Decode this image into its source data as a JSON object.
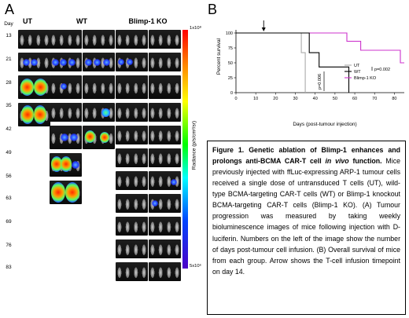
{
  "panel_a": {
    "letter": "A",
    "col_headers": [
      "UT",
      "WT",
      "Blimp-1 KO"
    ],
    "days": [
      "Day",
      "13",
      "21",
      "28",
      "35",
      "42",
      "49",
      "56",
      "63",
      "69",
      "76",
      "83"
    ],
    "colorbar": {
      "top_label": "1x10⁸",
      "bottom_label": "5x10⁶",
      "title": "Radiance (p/s/cm²/sr)",
      "colors": [
        "#ff0000",
        "#ffff00",
        "#00ff00",
        "#00ffff",
        "#0044ff",
        "#4b00c8"
      ]
    }
  },
  "panel_b": {
    "letter": "B",
    "chart_data": {
      "type": "line",
      "step": true,
      "xlabel": "Days (post-tumour injection)",
      "ylabel": "Percent survival",
      "xlim": [
        0,
        85
      ],
      "ylim": [
        0,
        100
      ],
      "xticks": [
        0,
        10,
        20,
        30,
        40,
        50,
        60,
        70,
        80
      ],
      "yticks": [
        0,
        25,
        50,
        75,
        100
      ],
      "arrow_day": 14,
      "series": [
        {
          "name": "UT",
          "color": "#aaaaaa",
          "points": [
            [
              0,
              100
            ],
            [
              33,
              100
            ],
            [
              33,
              67
            ],
            [
              35,
              67
            ],
            [
              35,
              0
            ]
          ]
        },
        {
          "name": "WT",
          "color": "#000000",
          "points": [
            [
              0,
              100
            ],
            [
              37,
              100
            ],
            [
              37,
              67
            ],
            [
              42,
              67
            ],
            [
              42,
              43
            ],
            [
              57,
              43
            ],
            [
              57,
              0
            ]
          ]
        },
        {
          "name": "Blimp-1 KO",
          "color": "#cc33cc",
          "points": [
            [
              0,
              100
            ],
            [
              56,
              100
            ],
            [
              56,
              86
            ],
            [
              63,
              86
            ],
            [
              63,
              71
            ],
            [
              83,
              71
            ],
            [
              83,
              50
            ],
            [
              85,
              50
            ]
          ]
        }
      ],
      "legend_position": "inside-right",
      "annotations": {
        "p1": "p=0.002",
        "p2": "p=0.006"
      }
    }
  },
  "caption": {
    "title": "Figure 1. Genetic ablation of Blimp-1 enhances and prolongs anti-BCMA CAR-T cell ",
    "title_italic": "in vivo",
    "title_end": " function.",
    "body": "Mice previously injected with ffLuc-expressing ARP-1 tumour cells received a single dose of untransduced T cells (UT), wild-type BCMA-targeting CAR-T cells (WT) or Blimp-1 knockout BCMA-targeting CAR-T cells (Blimp-1 KO). (A) Tumour progression was measured by taking weekly bioluminescence images of mice following injection with D-luciferin. Numbers on the left of the image show the number of days post-tumour cell infusion. (B) Overall survival of mice from each group. Arrow shows the T-cell infusion timepoint on day 14."
  }
}
